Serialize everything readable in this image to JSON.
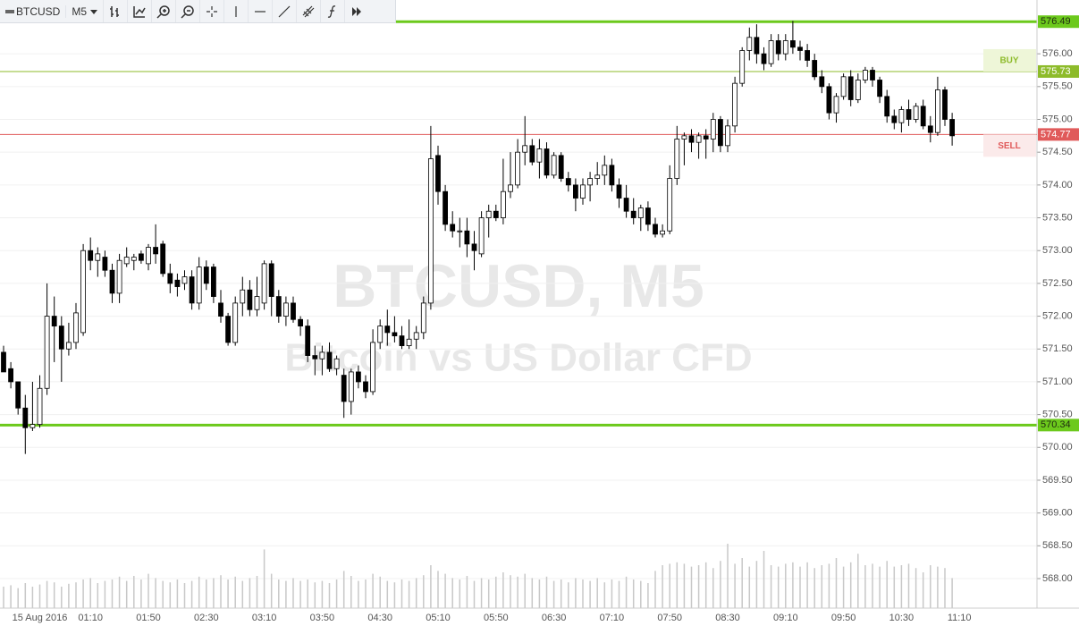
{
  "toolbar": {
    "symbol": "BTCUSD",
    "interval": "M5"
  },
  "chart_data": {
    "type": "candlestick",
    "title": "BTCUSD, M5",
    "subtitle": "Bitcoin vs US Dollar CFD",
    "categories": [
      null,
      null,
      null,
      null,
      null,
      "15 Aug 2016",
      null,
      null,
      null,
      null,
      null,
      null,
      "01:10",
      null,
      null,
      null,
      null,
      null,
      null,
      null,
      "01:50",
      null,
      null,
      null,
      null,
      null,
      null,
      null,
      "02:30",
      null,
      null,
      null,
      null,
      null,
      null,
      null,
      "03:10",
      null,
      null,
      null,
      null,
      null,
      null,
      null,
      "03:50",
      null,
      null,
      null,
      null,
      null,
      null,
      null,
      "04:30",
      null,
      null,
      null,
      null,
      null,
      null,
      null,
      "05:10",
      null,
      null,
      null,
      null,
      null,
      null,
      null,
      "05:50",
      null,
      null,
      null,
      null,
      null,
      null,
      null,
      "06:30",
      null,
      null,
      null,
      null,
      null,
      null,
      null,
      "07:10",
      null,
      null,
      null,
      null,
      null,
      null,
      null,
      "07:50",
      null,
      null,
      null,
      null,
      null,
      null,
      null,
      "08:30",
      null,
      null,
      null,
      null,
      null,
      null,
      null,
      "09:10",
      null,
      null,
      null,
      null,
      null,
      null,
      null,
      "09:50",
      null,
      null,
      null,
      null,
      null,
      null,
      null,
      "10:30",
      null,
      null,
      null,
      null,
      null,
      null,
      null,
      "11:10"
    ],
    "open": [
      571.45,
      571.2,
      571.0,
      570.6,
      570.3,
      570.35,
      570.9,
      572.0,
      571.85,
      571.5,
      571.6,
      571.75,
      573.0,
      572.85,
      572.9,
      572.7,
      572.35,
      572.8,
      572.85,
      572.95,
      572.8,
      573.05,
      573.1,
      572.65,
      572.55,
      572.5,
      572.6,
      572.2,
      572.75,
      572.75,
      572.2,
      572.0,
      571.6,
      572.2,
      572.4,
      572.1,
      572.2,
      572.8,
      572.3,
      572.0,
      572.2,
      571.95,
      571.85,
      571.4,
      571.35,
      571.45,
      571.2,
      571.1,
      570.7,
      571.15,
      571.0,
      570.85,
      571.6,
      571.85,
      571.75,
      571.7,
      571.55,
      571.65,
      571.75,
      572.2,
      574.45,
      573.9,
      573.4,
      573.3,
      573.3,
      573.1,
      572.95,
      573.5,
      573.6,
      573.5,
      573.9,
      574.0,
      574.5,
      574.6,
      574.35,
      574.55,
      574.15,
      574.45,
      574.1,
      574.0,
      573.8,
      574.0,
      574.1,
      574.15,
      574.3,
      574.0,
      573.8,
      573.6,
      573.5,
      573.65,
      573.4,
      573.25,
      573.3,
      574.1,
      574.7,
      574.75,
      574.65,
      574.75,
      574.7,
      575.0,
      574.6,
      574.9,
      575.55,
      576.05,
      576.25,
      576.0,
      575.85,
      576.2,
      576.0,
      576.2,
      576.1,
      576.05,
      575.9,
      575.65,
      575.5,
      575.1,
      575.35,
      575.65,
      575.3,
      575.6,
      575.75,
      575.6,
      575.35,
      575.05,
      574.95,
      575.15,
      575.0,
      575.2,
      574.9,
      574.8,
      575.45,
      575.0,
      null
    ],
    "high": [
      571.55,
      571.3,
      571.0,
      570.8,
      571.0,
      571.1,
      572.5,
      572.3,
      572.0,
      571.9,
      572.2,
      573.1,
      573.2,
      573.05,
      573.0,
      572.8,
      572.95,
      573.05,
      572.95,
      573.0,
      573.1,
      573.4,
      573.15,
      572.8,
      572.65,
      572.7,
      572.7,
      572.9,
      572.85,
      572.8,
      572.4,
      572.05,
      572.3,
      572.6,
      572.55,
      572.6,
      572.85,
      572.85,
      572.4,
      572.3,
      572.3,
      572.0,
      571.95,
      571.55,
      571.55,
      571.6,
      571.4,
      571.2,
      571.2,
      571.25,
      571.1,
      571.8,
      571.95,
      572.1,
      572.0,
      571.85,
      571.95,
      571.85,
      572.3,
      574.9,
      574.6,
      574.0,
      573.6,
      573.5,
      573.5,
      573.3,
      573.6,
      573.7,
      573.7,
      574.4,
      574.5,
      574.7,
      575.05,
      574.7,
      574.7,
      574.65,
      574.5,
      574.5,
      574.2,
      574.1,
      574.1,
      574.2,
      574.35,
      574.45,
      574.4,
      574.1,
      574.0,
      573.8,
      573.7,
      573.75,
      573.5,
      573.4,
      574.3,
      574.9,
      574.8,
      574.85,
      574.8,
      574.85,
      575.1,
      575.05,
      575.0,
      575.65,
      576.1,
      576.4,
      576.45,
      576.1,
      576.3,
      576.3,
      576.3,
      576.5,
      576.2,
      576.15,
      576.0,
      575.75,
      575.55,
      575.4,
      575.7,
      575.75,
      575.7,
      575.8,
      575.8,
      575.65,
      575.45,
      575.15,
      575.2,
      575.3,
      575.25,
      575.3,
      575.05,
      575.65,
      575.5,
      575.1,
      null
    ],
    "low": [
      571.15,
      570.9,
      570.5,
      569.9,
      570.25,
      570.3,
      570.8,
      571.3,
      571.0,
      571.4,
      571.5,
      571.7,
      572.7,
      572.6,
      572.6,
      572.2,
      572.2,
      572.75,
      572.7,
      572.8,
      572.7,
      572.8,
      572.6,
      572.35,
      572.3,
      572.4,
      572.1,
      572.1,
      572.4,
      572.2,
      571.9,
      571.55,
      571.55,
      572.0,
      572.0,
      572.0,
      572.1,
      572.0,
      571.9,
      571.85,
      571.9,
      571.7,
      571.3,
      571.1,
      571.1,
      571.15,
      571.1,
      570.45,
      570.5,
      570.9,
      570.75,
      570.8,
      571.5,
      571.55,
      571.6,
      571.5,
      571.5,
      571.5,
      571.65,
      572.1,
      573.7,
      573.3,
      573.2,
      573.05,
      572.9,
      572.7,
      572.9,
      573.2,
      573.45,
      573.4,
      573.8,
      573.95,
      574.3,
      574.3,
      574.1,
      574.1,
      574.1,
      574.05,
      573.9,
      573.6,
      573.7,
      573.75,
      574.0,
      574.0,
      573.9,
      573.65,
      573.5,
      573.4,
      573.3,
      573.3,
      573.2,
      573.2,
      573.25,
      574.0,
      574.3,
      574.5,
      574.4,
      574.4,
      574.5,
      574.5,
      574.5,
      574.8,
      575.5,
      575.9,
      575.85,
      575.75,
      575.8,
      575.9,
      575.9,
      576.0,
      575.9,
      575.8,
      575.6,
      575.4,
      575.0,
      574.95,
      575.3,
      575.2,
      575.25,
      575.55,
      575.5,
      575.25,
      574.95,
      574.85,
      574.8,
      574.9,
      574.95,
      574.85,
      574.65,
      574.75,
      574.9,
      574.6,
      null
    ],
    "close": [
      571.15,
      571.0,
      570.6,
      570.3,
      570.35,
      570.9,
      572.0,
      571.85,
      571.5,
      571.6,
      572.05,
      573.0,
      572.85,
      572.95,
      572.7,
      572.35,
      572.85,
      572.9,
      572.9,
      572.85,
      573.05,
      572.95,
      572.65,
      572.5,
      572.45,
      572.6,
      572.2,
      572.75,
      572.5,
      572.3,
      572.0,
      571.6,
      572.2,
      572.4,
      572.1,
      572.3,
      572.8,
      572.3,
      572.0,
      572.2,
      571.95,
      571.85,
      571.4,
      571.35,
      571.45,
      571.2,
      571.35,
      570.7,
      571.15,
      571.0,
      570.85,
      571.6,
      571.85,
      571.75,
      571.7,
      571.55,
      571.65,
      571.75,
      572.2,
      574.4,
      573.9,
      573.4,
      573.3,
      573.3,
      573.1,
      573.0,
      573.5,
      573.6,
      573.5,
      573.9,
      574.0,
      574.5,
      574.6,
      574.35,
      574.55,
      574.15,
      574.45,
      574.1,
      574.0,
      573.8,
      574.0,
      574.1,
      574.15,
      574.3,
      574.0,
      573.8,
      573.6,
      573.5,
      573.65,
      573.4,
      573.25,
      573.3,
      574.1,
      574.7,
      574.75,
      574.65,
      574.75,
      574.7,
      575.0,
      574.6,
      574.9,
      575.55,
      576.05,
      576.25,
      576.0,
      575.85,
      576.2,
      576.0,
      576.2,
      576.1,
      576.05,
      575.9,
      575.65,
      575.5,
      575.1,
      575.35,
      575.65,
      575.3,
      575.6,
      575.75,
      575.6,
      575.35,
      575.05,
      574.95,
      575.15,
      575.0,
      575.2,
      574.9,
      574.8,
      575.45,
      575.0,
      574.75,
      null
    ],
    "volume": [
      30,
      32,
      28,
      35,
      30,
      33,
      38,
      36,
      30,
      34,
      36,
      40,
      42,
      35,
      38,
      40,
      44,
      38,
      45,
      40,
      48,
      42,
      38,
      36,
      40,
      35,
      38,
      44,
      40,
      42,
      46,
      40,
      44,
      38,
      42,
      45,
      82,
      48,
      40,
      38,
      42,
      38,
      40,
      36,
      38,
      35,
      40,
      52,
      45,
      38,
      40,
      48,
      44,
      38,
      36,
      40,
      38,
      42,
      46,
      60,
      52,
      48,
      42,
      40,
      45,
      38,
      42,
      40,
      44,
      50,
      46,
      44,
      48,
      42,
      40,
      44,
      38,
      40,
      36,
      42,
      40,
      38,
      42,
      36,
      40,
      38,
      44,
      40,
      38,
      35,
      52,
      60,
      62,
      64,
      62,
      58,
      60,
      64,
      56,
      66,
      90,
      62,
      70,
      58,
      66,
      80,
      60,
      58,
      62,
      64,
      58,
      64,
      56,
      60,
      62,
      70,
      58,
      64,
      76,
      60,
      62,
      58,
      66,
      58,
      60,
      62,
      56,
      50,
      60,
      58,
      56,
      42,
      null
    ],
    "up_color": "#ffffff",
    "down_color": "#000000",
    "volume_color": "#c8c8c8",
    "ylim": [
      567.55,
      576.82
    ],
    "yticks": [
      {
        "value": 568,
        "label": "568.00"
      },
      {
        "value": 568.5,
        "label": "568.50"
      },
      {
        "value": 569,
        "label": "569.00"
      },
      {
        "value": 569.5,
        "label": "569.50"
      },
      {
        "value": 570,
        "label": "570.00"
      },
      {
        "value": 570.5,
        "label": "570.50"
      },
      {
        "value": 571,
        "label": "571.00"
      },
      {
        "value": 571.5,
        "label": "571.50"
      },
      {
        "value": 572,
        "label": "572.00"
      },
      {
        "value": 572.5,
        "label": "572.50"
      },
      {
        "value": 573,
        "label": "573.00"
      },
      {
        "value": 573.5,
        "label": "573.50"
      },
      {
        "value": 574,
        "label": "574.00"
      },
      {
        "value": 574.5,
        "label": "574.50"
      },
      {
        "value": 575,
        "label": "575.00"
      },
      {
        "value": 575.5,
        "label": "575.50"
      },
      {
        "value": 576,
        "label": "576.00"
      }
    ],
    "grid": true,
    "hlines": [
      {
        "value": 576.49,
        "label": "576.49",
        "color": "#6cc91c",
        "text_color": "#1e2a10",
        "line_width": 3
      },
      {
        "value": 575.73,
        "label": "575.73",
        "color": "#8dbb2a",
        "text_color": "#ffffff",
        "line_width": 1,
        "tag": "BUY",
        "tag_side": "above",
        "tag_fill": "#eef6d8"
      },
      {
        "value": 574.77,
        "label": "574.77",
        "color": "#e05a5a",
        "text_color": "#ffffff",
        "line_width": 1,
        "tag": "SELL",
        "tag_side": "below",
        "tag_fill": "#fbeaea"
      },
      {
        "value": 570.34,
        "label": "570.34",
        "color": "#6cc91c",
        "text_color": "#1e2a10",
        "line_width": 3
      }
    ]
  }
}
